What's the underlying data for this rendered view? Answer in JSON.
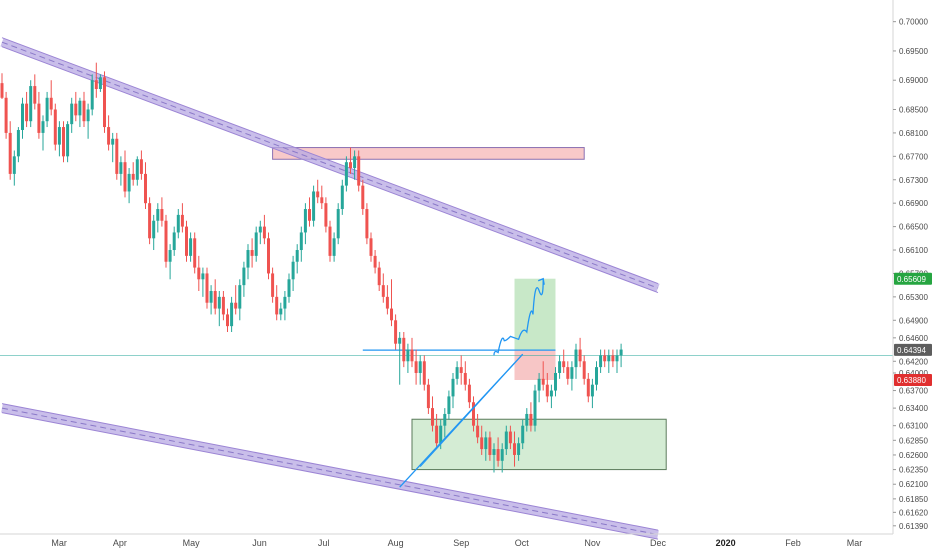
{
  "chart_data": {
    "type": "candlestick",
    "instrument_interval": "daily",
    "ylim": [
      0.6125,
      0.7037
    ],
    "price_axis": {
      "ticks": [
        "0.70000",
        "0.69500",
        "0.69000",
        "0.68500",
        "0.68100",
        "0.67700",
        "0.67300",
        "0.66900",
        "0.66500",
        "0.66100",
        "0.65700",
        "0.65300",
        "0.64900",
        "0.64600",
        "0.64200",
        "0.64000",
        "0.63700",
        "0.63400",
        "0.63100",
        "0.62850",
        "0.62600",
        "0.62350",
        "0.62100",
        "0.61850",
        "0.61620",
        "0.61390"
      ]
    },
    "time_axis": {
      "labels": [
        {
          "text": "Mar",
          "bold": false
        },
        {
          "text": "Apr",
          "bold": false
        },
        {
          "text": "May",
          "bold": false
        },
        {
          "text": "Jun",
          "bold": false
        },
        {
          "text": "Jul",
          "bold": false
        },
        {
          "text": "Aug",
          "bold": false
        },
        {
          "text": "Sep",
          "bold": false
        },
        {
          "text": "Oct",
          "bold": false
        },
        {
          "text": "Nov",
          "bold": false
        },
        {
          "text": "Dec",
          "bold": false
        },
        {
          "text": "2020",
          "bold": true
        },
        {
          "text": "Feb",
          "bold": false
        },
        {
          "text": "Mar",
          "bold": false
        }
      ]
    },
    "price_badges": [
      {
        "text": "0.65609",
        "color": "#26a541",
        "value": 0.65609
      },
      {
        "text": "0.64394",
        "color": "#5d5d5d",
        "value": 0.64394
      },
      {
        "text": "0.63880",
        "color": "#e02f2f",
        "value": 0.6388
      }
    ],
    "current_price_line": 0.643,
    "colors": {
      "bull": "#26a69a",
      "bear": "#ef5350",
      "channel": "#9b84d4",
      "trendline": "#2196f3",
      "resistance_zone": "#f8c9c9",
      "support_zone": "#d4ecd4",
      "target_zone": "#c8e8c8",
      "stop_zone": "#f7c6c6"
    },
    "candles": [
      [
        0.6895,
        0.6912,
        0.6868,
        0.687
      ],
      [
        0.687,
        0.688,
        0.68,
        0.681
      ],
      [
        0.681,
        0.683,
        0.673,
        0.674
      ],
      [
        0.674,
        0.678,
        0.672,
        0.677
      ],
      [
        0.677,
        0.682,
        0.676,
        0.6815
      ],
      [
        0.6815,
        0.687,
        0.68,
        0.686
      ],
      [
        0.686,
        0.688,
        0.682,
        0.683
      ],
      [
        0.683,
        0.69,
        0.682,
        0.689
      ],
      [
        0.689,
        0.691,
        0.685,
        0.686
      ],
      [
        0.686,
        0.688,
        0.68,
        0.681
      ],
      [
        0.681,
        0.684,
        0.678,
        0.683
      ],
      [
        0.683,
        0.688,
        0.682,
        0.687
      ],
      [
        0.687,
        0.69,
        0.684,
        0.685
      ],
      [
        0.685,
        0.686,
        0.678,
        0.679
      ],
      [
        0.679,
        0.683,
        0.677,
        0.682
      ],
      [
        0.682,
        0.683,
        0.676,
        0.677
      ],
      [
        0.677,
        0.683,
        0.676,
        0.6825
      ],
      [
        0.6825,
        0.687,
        0.681,
        0.686
      ],
      [
        0.686,
        0.688,
        0.683,
        0.684
      ],
      [
        0.684,
        0.687,
        0.682,
        0.6865
      ],
      [
        0.6865,
        0.688,
        0.682,
        0.683
      ],
      [
        0.683,
        0.686,
        0.68,
        0.685
      ],
      [
        0.685,
        0.691,
        0.684,
        0.69
      ],
      [
        0.69,
        0.693,
        0.687,
        0.6885
      ],
      [
        0.6885,
        0.691,
        0.688,
        0.6905
      ],
      [
        0.6905,
        0.6915,
        0.681,
        0.682
      ],
      [
        0.682,
        0.684,
        0.678,
        0.679
      ],
      [
        0.679,
        0.681,
        0.676,
        0.68
      ],
      [
        0.68,
        0.681,
        0.673,
        0.674
      ],
      [
        0.674,
        0.677,
        0.672,
        0.676
      ],
      [
        0.676,
        0.678,
        0.67,
        0.671
      ],
      [
        0.671,
        0.675,
        0.669,
        0.674
      ],
      [
        0.674,
        0.676,
        0.672,
        0.673
      ],
      [
        0.673,
        0.677,
        0.672,
        0.6765
      ],
      [
        0.6765,
        0.678,
        0.673,
        0.674
      ],
      [
        0.674,
        0.676,
        0.668,
        0.669
      ],
      [
        0.669,
        0.67,
        0.662,
        0.663
      ],
      [
        0.663,
        0.667,
        0.661,
        0.666
      ],
      [
        0.666,
        0.669,
        0.664,
        0.668
      ],
      [
        0.668,
        0.67,
        0.665,
        0.666
      ],
      [
        0.666,
        0.667,
        0.658,
        0.659
      ],
      [
        0.659,
        0.662,
        0.656,
        0.661
      ],
      [
        0.661,
        0.665,
        0.66,
        0.664
      ],
      [
        0.664,
        0.668,
        0.663,
        0.667
      ],
      [
        0.667,
        0.669,
        0.664,
        0.665
      ],
      [
        0.665,
        0.666,
        0.659,
        0.66
      ],
      [
        0.66,
        0.664,
        0.659,
        0.663
      ],
      [
        0.663,
        0.664,
        0.657,
        0.658
      ],
      [
        0.658,
        0.66,
        0.654,
        0.656
      ],
      [
        0.656,
        0.658,
        0.653,
        0.657
      ],
      [
        0.657,
        0.658,
        0.651,
        0.652
      ],
      [
        0.652,
        0.655,
        0.65,
        0.654
      ],
      [
        0.654,
        0.656,
        0.65,
        0.651
      ],
      [
        0.651,
        0.654,
        0.648,
        0.653
      ],
      [
        0.653,
        0.654,
        0.649,
        0.65
      ],
      [
        0.65,
        0.651,
        0.647,
        0.648
      ],
      [
        0.648,
        0.653,
        0.647,
        0.652
      ],
      [
        0.652,
        0.655,
        0.65,
        0.651
      ],
      [
        0.651,
        0.656,
        0.649,
        0.655
      ],
      [
        0.655,
        0.659,
        0.653,
        0.658
      ],
      [
        0.658,
        0.662,
        0.656,
        0.661
      ],
      [
        0.661,
        0.663,
        0.658,
        0.66
      ],
      [
        0.66,
        0.665,
        0.659,
        0.664
      ],
      [
        0.664,
        0.666,
        0.662,
        0.665
      ],
      [
        0.665,
        0.667,
        0.662,
        0.663
      ],
      [
        0.663,
        0.664,
        0.656,
        0.657
      ],
      [
        0.657,
        0.658,
        0.652,
        0.653
      ],
      [
        0.653,
        0.655,
        0.649,
        0.65
      ],
      [
        0.65,
        0.652,
        0.649,
        0.651
      ],
      [
        0.651,
        0.654,
        0.649,
        0.653
      ],
      [
        0.653,
        0.657,
        0.652,
        0.656
      ],
      [
        0.656,
        0.66,
        0.654,
        0.659
      ],
      [
        0.659,
        0.662,
        0.657,
        0.661
      ],
      [
        0.661,
        0.665,
        0.659,
        0.664
      ],
      [
        0.664,
        0.669,
        0.662,
        0.668
      ],
      [
        0.668,
        0.67,
        0.665,
        0.666
      ],
      [
        0.666,
        0.672,
        0.665,
        0.671
      ],
      [
        0.671,
        0.673,
        0.669,
        0.67
      ],
      [
        0.67,
        0.672,
        0.668,
        0.669
      ],
      [
        0.669,
        0.67,
        0.664,
        0.665
      ],
      [
        0.665,
        0.666,
        0.659,
        0.66
      ],
      [
        0.66,
        0.664,
        0.659,
        0.663
      ],
      [
        0.663,
        0.669,
        0.662,
        0.668
      ],
      [
        0.668,
        0.673,
        0.667,
        0.672
      ],
      [
        0.672,
        0.677,
        0.671,
        0.676
      ],
      [
        0.676,
        0.6785,
        0.674,
        0.675
      ],
      [
        0.675,
        0.678,
        0.673,
        0.677
      ],
      [
        0.677,
        0.678,
        0.671,
        0.672
      ],
      [
        0.672,
        0.673,
        0.667,
        0.668
      ],
      [
        0.668,
        0.669,
        0.662,
        0.663
      ],
      [
        0.663,
        0.664,
        0.659,
        0.66
      ],
      [
        0.66,
        0.661,
        0.657,
        0.658
      ],
      [
        0.658,
        0.659,
        0.654,
        0.655
      ],
      [
        0.655,
        0.657,
        0.652,
        0.653
      ],
      [
        0.653,
        0.655,
        0.65,
        0.651
      ],
      [
        0.651,
        0.656,
        0.648,
        0.649
      ],
      [
        0.649,
        0.65,
        0.644,
        0.645
      ],
      [
        0.645,
        0.647,
        0.638,
        0.646
      ],
      [
        0.646,
        0.647,
        0.641,
        0.642
      ],
      [
        0.642,
        0.645,
        0.64,
        0.644
      ],
      [
        0.644,
        0.646,
        0.641,
        0.642
      ],
      [
        0.642,
        0.644,
        0.638,
        0.64
      ],
      [
        0.64,
        0.643,
        0.638,
        0.642
      ],
      [
        0.642,
        0.643,
        0.637,
        0.638
      ],
      [
        0.638,
        0.639,
        0.633,
        0.634
      ],
      [
        0.634,
        0.636,
        0.63,
        0.631
      ],
      [
        0.631,
        0.633,
        0.627,
        0.628
      ],
      [
        0.628,
        0.632,
        0.627,
        0.631
      ],
      [
        0.631,
        0.634,
        0.629,
        0.633
      ],
      [
        0.633,
        0.637,
        0.632,
        0.636
      ],
      [
        0.636,
        0.64,
        0.634,
        0.639
      ],
      [
        0.639,
        0.642,
        0.638,
        0.641
      ],
      [
        0.641,
        0.643,
        0.638,
        0.64
      ],
      [
        0.64,
        0.642,
        0.637,
        0.638
      ],
      [
        0.638,
        0.639,
        0.634,
        0.635
      ],
      [
        0.635,
        0.636,
        0.63,
        0.631
      ],
      [
        0.631,
        0.633,
        0.628,
        0.629
      ],
      [
        0.629,
        0.631,
        0.626,
        0.627
      ],
      [
        0.627,
        0.63,
        0.625,
        0.629
      ],
      [
        0.629,
        0.63,
        0.625,
        0.626
      ],
      [
        0.626,
        0.628,
        0.623,
        0.627
      ],
      [
        0.627,
        0.629,
        0.624,
        0.625
      ],
      [
        0.625,
        0.628,
        0.623,
        0.627
      ],
      [
        0.627,
        0.631,
        0.626,
        0.63
      ],
      [
        0.63,
        0.631,
        0.627,
        0.628
      ],
      [
        0.628,
        0.63,
        0.624,
        0.626
      ],
      [
        0.626,
        0.629,
        0.625,
        0.628
      ],
      [
        0.628,
        0.632,
        0.627,
        0.631
      ],
      [
        0.631,
        0.634,
        0.63,
        0.633
      ],
      [
        0.633,
        0.635,
        0.63,
        0.631
      ],
      [
        0.631,
        0.638,
        0.63,
        0.637
      ],
      [
        0.637,
        0.64,
        0.635,
        0.639
      ],
      [
        0.639,
        0.642,
        0.637,
        0.638
      ],
      [
        0.638,
        0.64,
        0.635,
        0.636
      ],
      [
        0.636,
        0.638,
        0.634,
        0.637
      ],
      [
        0.637,
        0.641,
        0.636,
        0.64
      ],
      [
        0.64,
        0.643,
        0.639,
        0.642
      ],
      [
        0.642,
        0.644,
        0.64,
        0.641
      ],
      [
        0.641,
        0.642,
        0.638,
        0.639
      ],
      [
        0.639,
        0.642,
        0.637,
        0.641
      ],
      [
        0.641,
        0.645,
        0.639,
        0.644
      ],
      [
        0.644,
        0.646,
        0.641,
        0.642
      ],
      [
        0.642,
        0.643,
        0.638,
        0.639
      ],
      [
        0.639,
        0.64,
        0.635,
        0.636
      ],
      [
        0.636,
        0.639,
        0.634,
        0.638
      ],
      [
        0.638,
        0.642,
        0.637,
        0.641
      ],
      [
        0.641,
        0.644,
        0.64,
        0.643
      ],
      [
        0.643,
        0.644,
        0.641,
        0.642
      ],
      [
        0.642,
        0.644,
        0.64,
        0.643
      ],
      [
        0.643,
        0.644,
        0.641,
        0.642
      ],
      [
        0.642,
        0.644,
        0.64,
        0.643
      ],
      [
        0.643,
        0.645,
        0.641,
        0.644
      ]
    ],
    "overlays": {
      "upper_channel": [
        [
          0.6965,
          0
        ],
        [
          0.6545,
          160
        ]
      ],
      "lower_channel": [
        [
          0.634,
          0
        ],
        [
          0.6124,
          160
        ]
      ],
      "resistance_zone": {
        "top": 0.6785,
        "bottom": 0.6765,
        "from": 66,
        "to": 142
      },
      "support_zone": {
        "top": 0.6321,
        "bottom": 0.6235,
        "from": 100,
        "to": 162
      },
      "target_zone": {
        "top": 0.6561,
        "bottom": 0.6439,
        "from": 125,
        "to": 135
      },
      "stop_zone": {
        "top": 0.6439,
        "bottom": 0.6388,
        "from": 125,
        "to": 135
      },
      "horizontal_level": {
        "value": 0.6439,
        "from": 88,
        "to": 135
      },
      "ascending_trendline": [
        [
          0.6205,
          97
        ],
        [
          0.6432,
          127
        ]
      ],
      "rising_support_line": [
        [
          0.624,
          102
        ],
        [
          0.6432,
          127
        ]
      ],
      "projection_path": [
        [
          0.643,
          120
        ],
        [
          0.644,
          122
        ],
        [
          0.647,
          123
        ],
        [
          0.6455,
          125
        ],
        [
          0.646,
          127
        ],
        [
          0.648,
          129
        ],
        [
          0.652,
          130
        ],
        [
          0.6561,
          132
        ]
      ]
    }
  }
}
